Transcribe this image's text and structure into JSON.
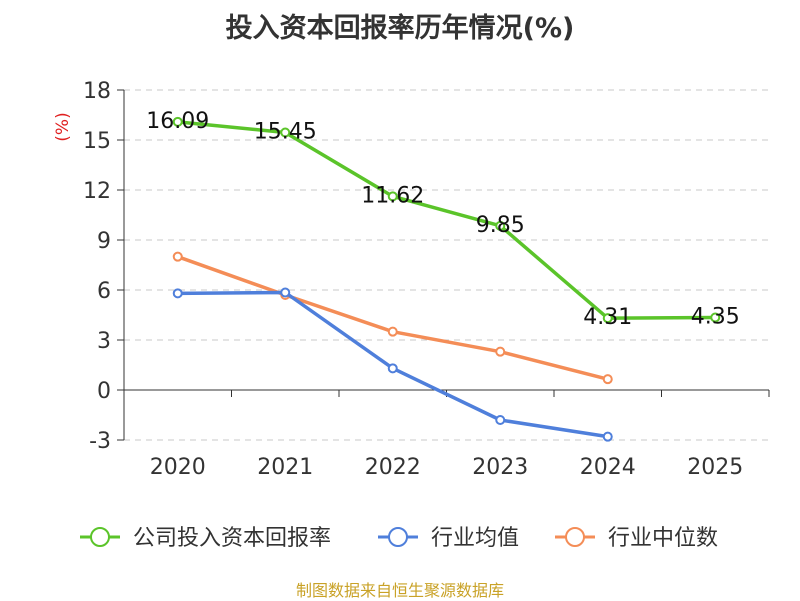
{
  "chart_data": {
    "type": "line",
    "title": "投入资本回报率历年情况(%)",
    "ylabel": "(%)",
    "xlabel": "",
    "categories": [
      "2020",
      "2021",
      "2022",
      "2023",
      "2024",
      "2025"
    ],
    "ylim": [
      -3,
      18
    ],
    "yticks": [
      -3,
      0,
      3,
      6,
      9,
      12,
      15,
      18
    ],
    "grid": true,
    "legend_position": "bottom",
    "series": [
      {
        "name": "公司投入资本回报率",
        "color": "#5bc42a",
        "values": [
          16.09,
          15.45,
          11.62,
          9.85,
          4.31,
          4.35
        ],
        "labels": [
          "16.09",
          "15.45",
          "11.62",
          "9.85",
          "4.31",
          "4.35"
        ]
      },
      {
        "name": "行业均值",
        "color": "#4f7fdb",
        "values": [
          5.8,
          5.85,
          1.3,
          -1.8,
          -2.8,
          null
        ]
      },
      {
        "name": "行业中位数",
        "color": "#f48d57",
        "values": [
          8.0,
          5.7,
          3.5,
          2.3,
          0.65,
          null
        ]
      }
    ]
  },
  "source": "制图数据来自恒生聚源数据库"
}
